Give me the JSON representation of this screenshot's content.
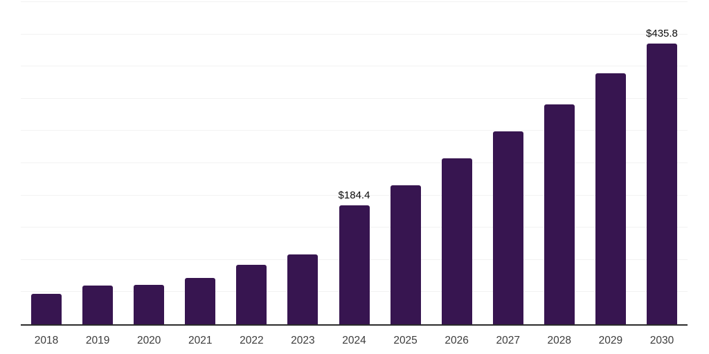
{
  "chart_data": {
    "type": "bar",
    "title": "",
    "xlabel": "",
    "ylabel": "",
    "categories": [
      "2018",
      "2019",
      "2020",
      "2021",
      "2022",
      "2023",
      "2024",
      "2025",
      "2026",
      "2027",
      "2028",
      "2029",
      "2030"
    ],
    "values": [
      47,
      60,
      61,
      72,
      92,
      108,
      184.4,
      216,
      258,
      299,
      341,
      390,
      435.8
    ],
    "data_labels": [
      null,
      null,
      null,
      null,
      null,
      null,
      "$184.4",
      null,
      null,
      null,
      null,
      null,
      "$435.8"
    ],
    "ylim": [
      0,
      500
    ],
    "gridline_step": 50,
    "grid": true,
    "legend": false,
    "colors": {
      "bar": "#371550",
      "gridline": "#f2f2f2",
      "axis_line": "#2b2b2b",
      "tick_label": "#3c3c3c",
      "data_label": "#0b0b0b",
      "background": "#ffffff"
    }
  }
}
